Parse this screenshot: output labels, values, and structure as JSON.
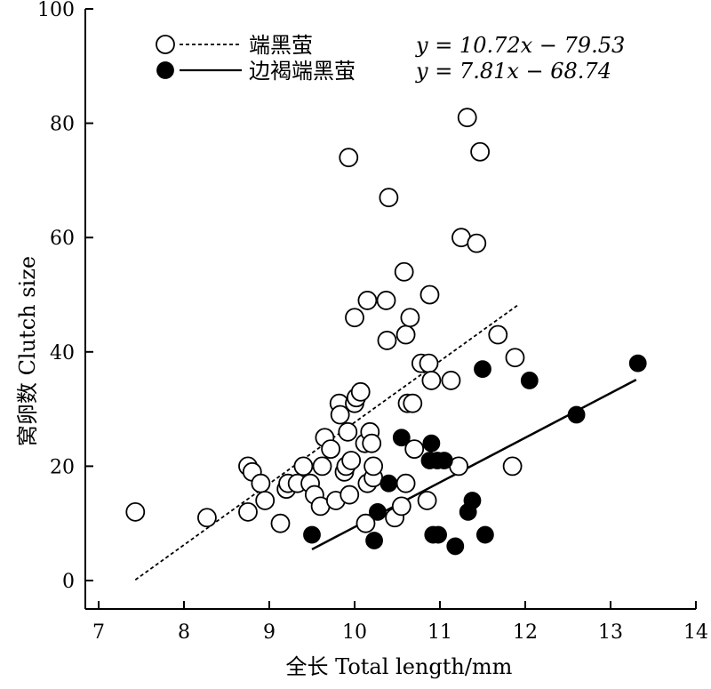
{
  "chart_data": {
    "type": "scatter",
    "xlabel": "全长 Total length/mm",
    "ylabel": "窝卵数 Clutch size",
    "xlim": [
      7,
      14
    ],
    "ylim": [
      0,
      100
    ],
    "x_ticks": [
      "7",
      "8",
      "9",
      "10",
      "11",
      "12",
      "13",
      "14"
    ],
    "y_ticks": [
      "0",
      "20",
      "40",
      "60",
      "80",
      "100"
    ],
    "grid": false,
    "legend_position": "top-left",
    "series": [
      {
        "name": "端黑萤",
        "marker": "open-circle",
        "line_style": "dashed",
        "equation": "y = 10.72x − 79.53",
        "fit": {
          "slope": 10.72,
          "intercept": -79.53,
          "x_range": [
            7.43,
            11.92
          ]
        },
        "points": [
          [
            7.43,
            12
          ],
          [
            8.27,
            11
          ],
          [
            8.75,
            20
          ],
          [
            8.75,
            12
          ],
          [
            8.8,
            19
          ],
          [
            8.9,
            17
          ],
          [
            8.95,
            14
          ],
          [
            9.13,
            10
          ],
          [
            9.2,
            16
          ],
          [
            9.22,
            17
          ],
          [
            9.33,
            17
          ],
          [
            9.4,
            20
          ],
          [
            9.48,
            17
          ],
          [
            9.53,
            15
          ],
          [
            9.6,
            13
          ],
          [
            9.62,
            20
          ],
          [
            9.65,
            25
          ],
          [
            9.72,
            23
          ],
          [
            9.78,
            14
          ],
          [
            9.82,
            31
          ],
          [
            9.83,
            29
          ],
          [
            9.88,
            19
          ],
          [
            9.9,
            20
          ],
          [
            9.92,
            26
          ],
          [
            9.93,
            74
          ],
          [
            9.94,
            15
          ],
          [
            9.96,
            21
          ],
          [
            10.0,
            46
          ],
          [
            10.0,
            31
          ],
          [
            10.02,
            32
          ],
          [
            10.07,
            33
          ],
          [
            10.12,
            24
          ],
          [
            10.13,
            10
          ],
          [
            10.15,
            17
          ],
          [
            10.15,
            49
          ],
          [
            10.18,
            26
          ],
          [
            10.2,
            24
          ],
          [
            10.22,
            18
          ],
          [
            10.22,
            20
          ],
          [
            10.37,
            49
          ],
          [
            10.38,
            42
          ],
          [
            10.4,
            67
          ],
          [
            10.47,
            11
          ],
          [
            10.55,
            13
          ],
          [
            10.58,
            54
          ],
          [
            10.6,
            17
          ],
          [
            10.6,
            43
          ],
          [
            10.62,
            31
          ],
          [
            10.65,
            46
          ],
          [
            10.68,
            31
          ],
          [
            10.7,
            23
          ],
          [
            10.78,
            38
          ],
          [
            10.85,
            14
          ],
          [
            10.87,
            38
          ],
          [
            10.88,
            50
          ],
          [
            10.9,
            35
          ],
          [
            11.13,
            35
          ],
          [
            11.22,
            20
          ],
          [
            11.25,
            60
          ],
          [
            11.32,
            81
          ],
          [
            11.43,
            59
          ],
          [
            11.47,
            75
          ],
          [
            11.68,
            43
          ],
          [
            11.85,
            20
          ],
          [
            11.88,
            39
          ]
        ]
      },
      {
        "name": "边褐端黑萤",
        "marker": "filled-circle",
        "line_style": "solid",
        "equation": "y = 7.81x − 68.74",
        "fit": {
          "slope": 7.81,
          "intercept": -68.74,
          "x_range": [
            9.5,
            13.3
          ]
        },
        "points": [
          [
            9.5,
            8
          ],
          [
            10.23,
            7
          ],
          [
            10.27,
            12
          ],
          [
            10.4,
            17
          ],
          [
            10.55,
            25
          ],
          [
            10.88,
            21
          ],
          [
            10.9,
            24
          ],
          [
            10.92,
            8
          ],
          [
            10.97,
            21
          ],
          [
            10.98,
            8
          ],
          [
            11.05,
            21
          ],
          [
            11.18,
            6
          ],
          [
            11.33,
            12
          ],
          [
            11.38,
            14
          ],
          [
            11.5,
            37
          ],
          [
            11.53,
            8
          ],
          [
            12.05,
            35
          ],
          [
            12.6,
            29
          ],
          [
            13.32,
            38
          ]
        ]
      }
    ]
  }
}
